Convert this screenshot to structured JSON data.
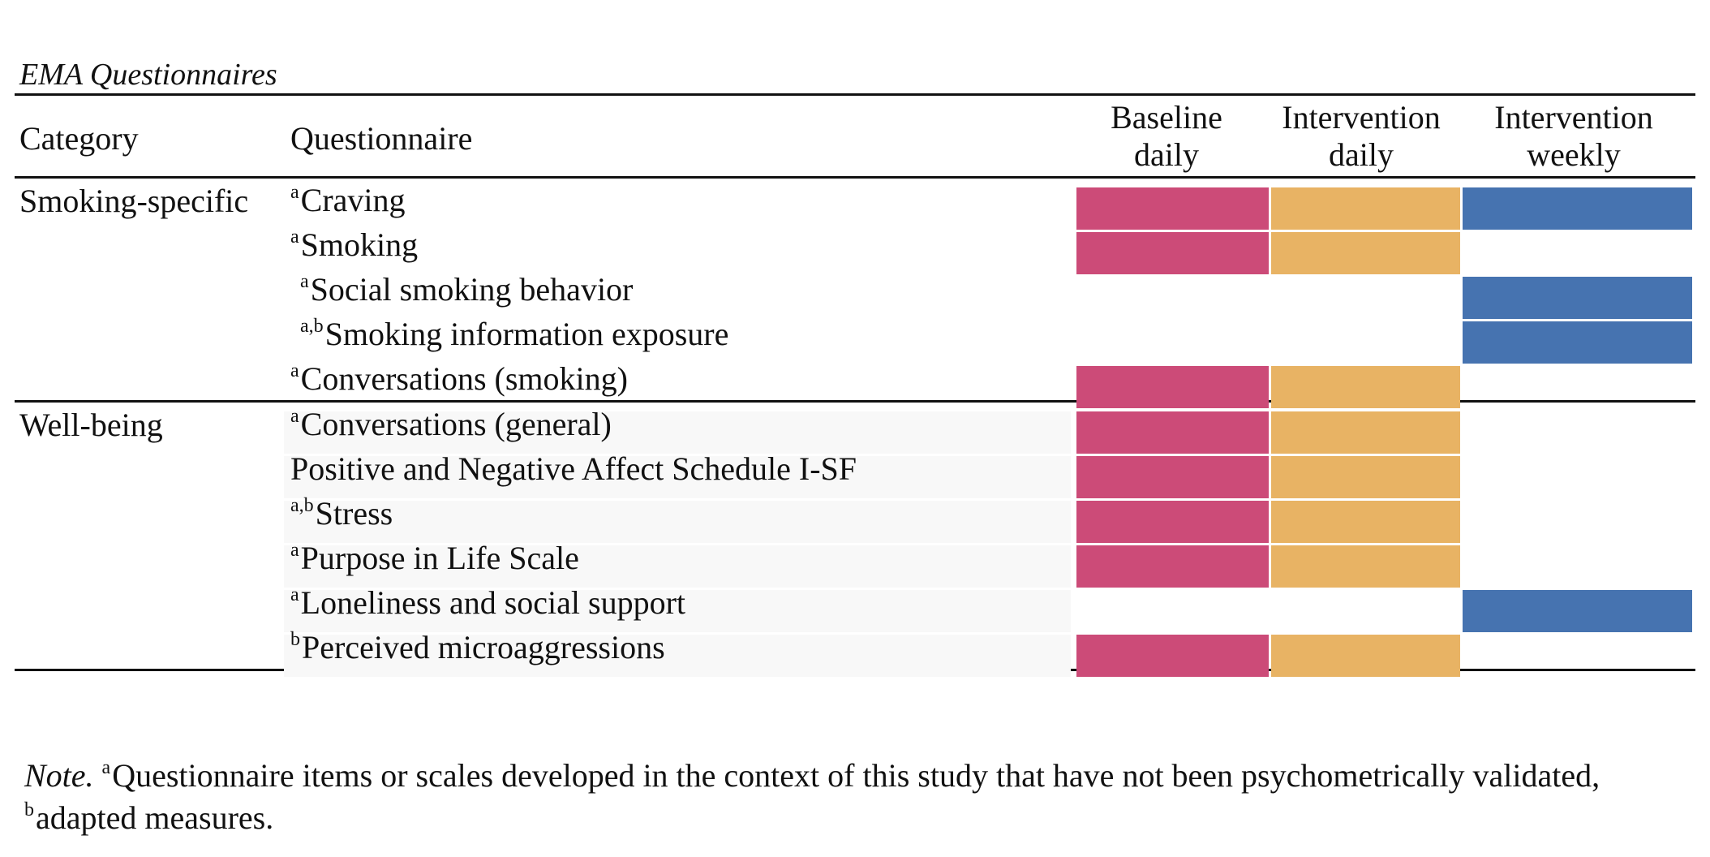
{
  "title": "EMA Questionnaires",
  "colors": {
    "baseline_daily": "#cc4b78",
    "intervention_daily": "#e8b364",
    "intervention_weekly": "#4673b0"
  },
  "headers": {
    "category": "Category",
    "questionnaire": "Questionnaire",
    "col1_line1": "Baseline",
    "col1_line2": "daily",
    "col2_line1": "Intervention",
    "col2_line2": "daily",
    "col3_line1": "Intervention",
    "col3_line2": "weekly"
  },
  "categories": {
    "smoking": "Smoking-specific",
    "wellbeing": "Well-being"
  },
  "rows": [
    {
      "sup": "a",
      "label": "Craving",
      "baseline_daily": true,
      "intervention_daily": true,
      "intervention_weekly": true
    },
    {
      "sup": "a",
      "label": "Smoking",
      "baseline_daily": true,
      "intervention_daily": true,
      "intervention_weekly": false
    },
    {
      "sup": "a",
      "label": "Social smoking behavior",
      "baseline_daily": false,
      "intervention_daily": false,
      "intervention_weekly": true
    },
    {
      "sup": "a,b",
      "label": "Smoking information exposure",
      "baseline_daily": false,
      "intervention_daily": false,
      "intervention_weekly": true
    },
    {
      "sup": "a",
      "label": "Conversations (smoking)",
      "baseline_daily": true,
      "intervention_daily": true,
      "intervention_weekly": false
    },
    {
      "sup": "a",
      "label": "Conversations (general)",
      "baseline_daily": true,
      "intervention_daily": true,
      "intervention_weekly": false
    },
    {
      "sup": "",
      "label": "Positive and Negative Affect Schedule I-SF",
      "baseline_daily": true,
      "intervention_daily": true,
      "intervention_weekly": false
    },
    {
      "sup": "a,b",
      "label": "Stress",
      "baseline_daily": true,
      "intervention_daily": true,
      "intervention_weekly": false
    },
    {
      "sup": "a",
      "label": "Purpose in Life Scale",
      "baseline_daily": true,
      "intervention_daily": true,
      "intervention_weekly": false
    },
    {
      "sup": "a",
      "label": "Loneliness and social support",
      "baseline_daily": false,
      "intervention_daily": false,
      "intervention_weekly": true
    },
    {
      "sup": "b",
      "label": "Perceived microaggressions",
      "baseline_daily": true,
      "intervention_daily": true,
      "intervention_weekly": false
    }
  ],
  "note": {
    "lead": "Note.",
    "sup_a": "a",
    "text_a": "Questionnaire items or scales developed in the context of this study that have not been psychometrically validated, ",
    "sup_b": "b",
    "text_b": "adapted measures."
  }
}
